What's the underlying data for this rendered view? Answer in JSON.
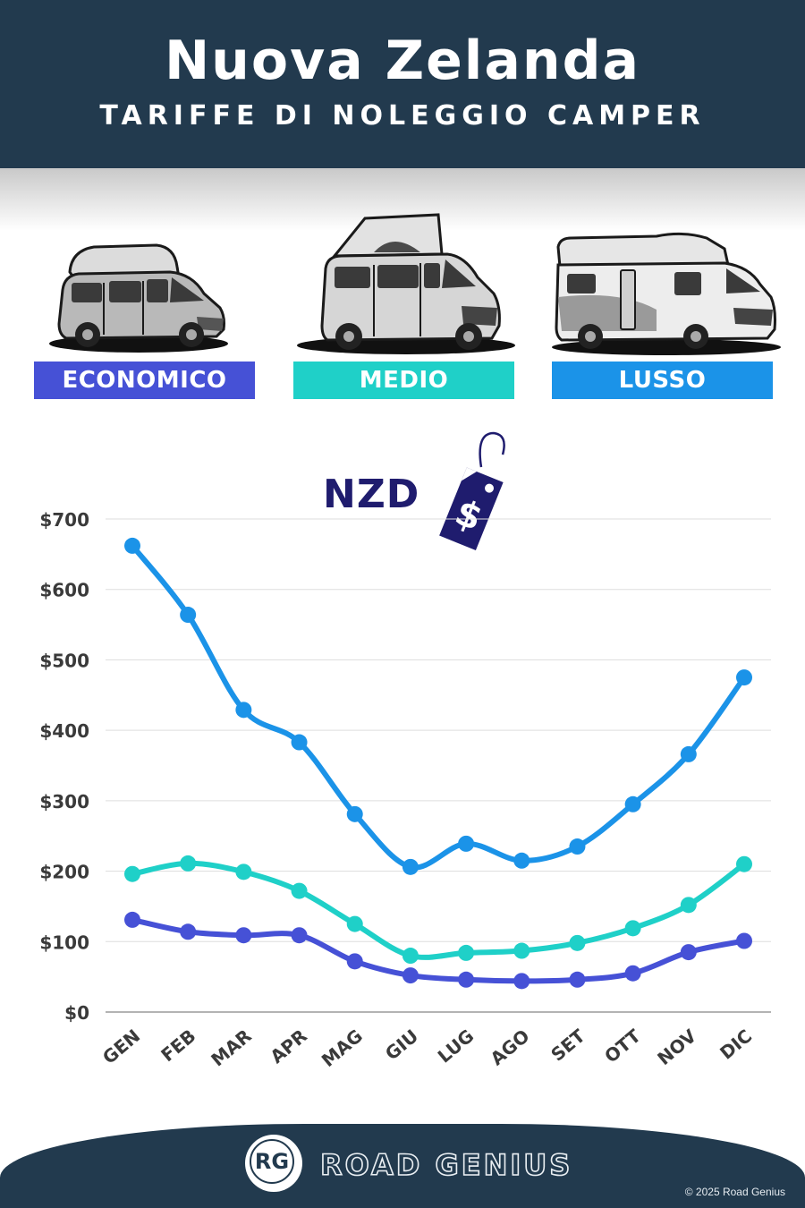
{
  "header": {
    "title": "Nuova Zelanda",
    "subtitle": "TARIFFE DI NOLEGGIO CAMPER"
  },
  "categories": [
    {
      "label": "ECONOMICO",
      "color": "#4651d6",
      "icon": "compact-campervan-icon"
    },
    {
      "label": "MEDIO",
      "color": "#1fd0c8",
      "icon": "popup-roof-van-icon"
    },
    {
      "label": "LUSSO",
      "color": "#1b93e8",
      "icon": "motorhome-icon"
    }
  ],
  "currency_label": "NZD",
  "price_tag_icon": "dollar-price-tag-icon",
  "chart_data": {
    "type": "line",
    "title": "",
    "xlabel": "",
    "ylabel": "",
    "categories": [
      "GEN",
      "FEB",
      "MAR",
      "APR",
      "MAG",
      "GIU",
      "LUG",
      "AGO",
      "SET",
      "OTT",
      "NOV",
      "DIC"
    ],
    "ylim": [
      0,
      700
    ],
    "y_ticks": [
      0,
      100,
      200,
      300,
      400,
      500,
      600,
      700
    ],
    "y_tick_labels": [
      "$0",
      "$100",
      "$200",
      "$300",
      "$400",
      "$500",
      "$600",
      "$700"
    ],
    "grid": true,
    "series": [
      {
        "name": "LUSSO",
        "color": "#1b93e8",
        "values": [
          662,
          564,
          429,
          383,
          281,
          206,
          239,
          215,
          235,
          295,
          366,
          475
        ]
      },
      {
        "name": "MEDIO",
        "color": "#1fd0c8",
        "values": [
          196,
          211,
          199,
          172,
          125,
          80,
          84,
          87,
          98,
          119,
          152,
          210
        ]
      },
      {
        "name": "ECONOMICO",
        "color": "#4651d6",
        "values": [
          131,
          114,
          109,
          109,
          72,
          52,
          46,
          44,
          46,
          55,
          85,
          101
        ]
      }
    ]
  },
  "footer": {
    "logo_text": "RG",
    "brand": "ROAD GENIUS",
    "copyright": "© 2025 Road Genius"
  }
}
